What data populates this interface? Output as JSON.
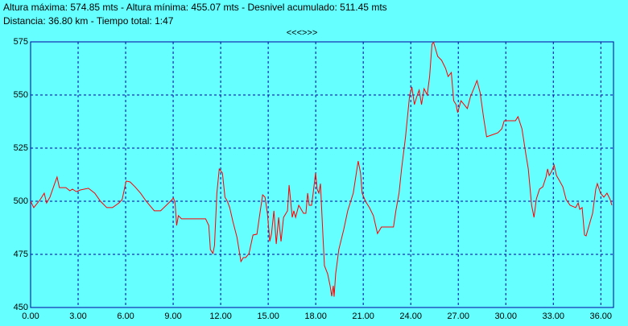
{
  "chart_data": {
    "type": "line",
    "header": [
      "Altura máxima: 574.85 mts - Altura mínima: 455.07 mts - Desnivel acumulado: 511.45 mts",
      "Distancia: 36.80 km - Tiempo total: 1:47"
    ],
    "nav": "<<<>>>",
    "color": "#ff0000",
    "grid": true,
    "xlim": [
      0,
      36.8
    ],
    "ylim": [
      450,
      575
    ],
    "xticks": [
      {
        "value": 0,
        "label": "0.00"
      },
      {
        "value": 3,
        "label": "3.00"
      },
      {
        "value": 6,
        "label": "6.00"
      },
      {
        "value": 9,
        "label": "9.00"
      },
      {
        "value": 12,
        "label": "12.00"
      },
      {
        "value": 15,
        "label": "15.00"
      },
      {
        "value": 18,
        "label": "18.00"
      },
      {
        "value": 21,
        "label": "21.00"
      },
      {
        "value": 24,
        "label": "24.00"
      },
      {
        "value": 27,
        "label": "27.00"
      },
      {
        "value": 30,
        "label": "30.00"
      },
      {
        "value": 33,
        "label": "33.00"
      },
      {
        "value": 36,
        "label": "36.00"
      }
    ],
    "yticks": [
      450,
      475,
      500,
      525,
      550,
      575
    ],
    "x": [
      0.0,
      0.2,
      0.61,
      0.86,
      1.01,
      1.22,
      1.52,
      1.67,
      1.82,
      2.23,
      2.48,
      2.64,
      2.89,
      3.14,
      3.65,
      4.05,
      4.41,
      4.81,
      5.17,
      5.58,
      5.78,
      6.03,
      6.28,
      6.59,
      6.94,
      7.3,
      7.81,
      8.21,
      8.72,
      9.02,
      9.12,
      9.22,
      9.33,
      9.53,
      10.24,
      11.05,
      11.25,
      11.35,
      11.51,
      11.61,
      11.76,
      11.91,
      12.11,
      12.27,
      12.42,
      12.57,
      12.77,
      13.03,
      13.28,
      13.43,
      13.58,
      13.79,
      14.04,
      14.29,
      14.44,
      14.65,
      14.8,
      14.95,
      15.1,
      15.21,
      15.36,
      15.51,
      15.66,
      15.81,
      15.97,
      16.22,
      16.32,
      16.42,
      16.52,
      16.62,
      16.73,
      16.93,
      17.23,
      17.38,
      17.49,
      17.59,
      17.74,
      17.84,
      17.99,
      18.09,
      18.2,
      18.3,
      18.45,
      18.55,
      18.75,
      18.91,
      19.01,
      19.11,
      19.16,
      19.26,
      19.46,
      19.77,
      20.02,
      20.37,
      20.68,
      20.83,
      20.93,
      21.14,
      21.39,
      21.64,
      21.9,
      22.15,
      22.91,
      23.06,
      23.26,
      23.42,
      23.67,
      23.92,
      24.07,
      24.23,
      24.38,
      24.53,
      24.68,
      24.84,
      25.04,
      25.19,
      25.34,
      25.44,
      25.7,
      25.95,
      26.2,
      26.36,
      26.56,
      26.71,
      26.86,
      26.96,
      27.17,
      27.37,
      27.57,
      27.77,
      27.98,
      28.18,
      28.38,
      28.59,
      28.79,
      29.09,
      29.5,
      29.75,
      29.9,
      30.31,
      30.61,
      30.77,
      31.02,
      31.27,
      31.42,
      31.63,
      31.78,
      31.93,
      32.13,
      32.34,
      32.54,
      32.64,
      32.74,
      32.89,
      33.05,
      33.2,
      33.4,
      33.6,
      33.81,
      34.06,
      34.41,
      34.57,
      34.67,
      34.82,
      34.97,
      35.07,
      35.33,
      35.48,
      35.68,
      35.78,
      35.98,
      36.19,
      36.39,
      36.59,
      36.7
    ],
    "values": [
      500.0,
      497.0,
      500.8,
      503.8,
      499.2,
      501.9,
      508.3,
      511.4,
      506.4,
      506.4,
      504.9,
      505.7,
      504.5,
      505.3,
      506.1,
      503.8,
      500.0,
      497.0,
      497.0,
      499.2,
      500.8,
      509.5,
      509.1,
      506.8,
      503.8,
      500.0,
      495.5,
      495.5,
      499.2,
      501.5,
      499.2,
      488.6,
      493.2,
      491.7,
      491.7,
      491.7,
      488.6,
      477.3,
      475.4,
      479.2,
      503.8,
      515.2,
      513.3,
      501.9,
      500.0,
      497.0,
      490.5,
      483.0,
      471.6,
      473.5,
      473.5,
      475.4,
      484.1,
      484.5,
      492.4,
      503.0,
      501.9,
      494.3,
      481.1,
      484.8,
      495.5,
      479.9,
      492.4,
      481.1,
      492.4,
      495.5,
      507.6,
      500.0,
      492.4,
      495.5,
      492.4,
      498.1,
      494.3,
      494.3,
      503.8,
      498.1,
      498.1,
      503.8,
      513.3,
      505.7,
      503.8,
      508.3,
      484.8,
      469.7,
      465.9,
      460.2,
      455.3,
      460.2,
      455.1,
      465.9,
      477.3,
      486.7,
      495.5,
      503.8,
      518.9,
      513.3,
      503.8,
      500.0,
      497.0,
      493.2,
      484.8,
      487.9,
      487.9,
      495.5,
      503.8,
      515.2,
      530.3,
      549.2,
      553.8,
      545.5,
      549.2,
      552.3,
      545.5,
      553.0,
      550.0,
      558.7,
      573.9,
      574.85,
      568.2,
      566.3,
      562.5,
      558.7,
      560.6,
      547.3,
      545.5,
      541.7,
      547.3,
      545.5,
      543.6,
      549.2,
      553.0,
      556.8,
      551.1,
      539.8,
      530.3,
      531.1,
      532.2,
      534.1,
      537.9,
      537.9,
      537.9,
      539.8,
      534.1,
      522.0,
      515.2,
      498.1,
      492.4,
      501.1,
      505.7,
      506.8,
      511.4,
      515.2,
      512.1,
      514.0,
      517.0,
      512.1,
      509.5,
      506.8,
      500.8,
      498.1,
      497.0,
      499.2,
      496.2,
      497.0,
      484.1,
      483.7,
      490.5,
      494.3,
      505.7,
      508.3,
      503.8,
      501.9,
      503.8,
      500.8,
      498.1
    ]
  }
}
